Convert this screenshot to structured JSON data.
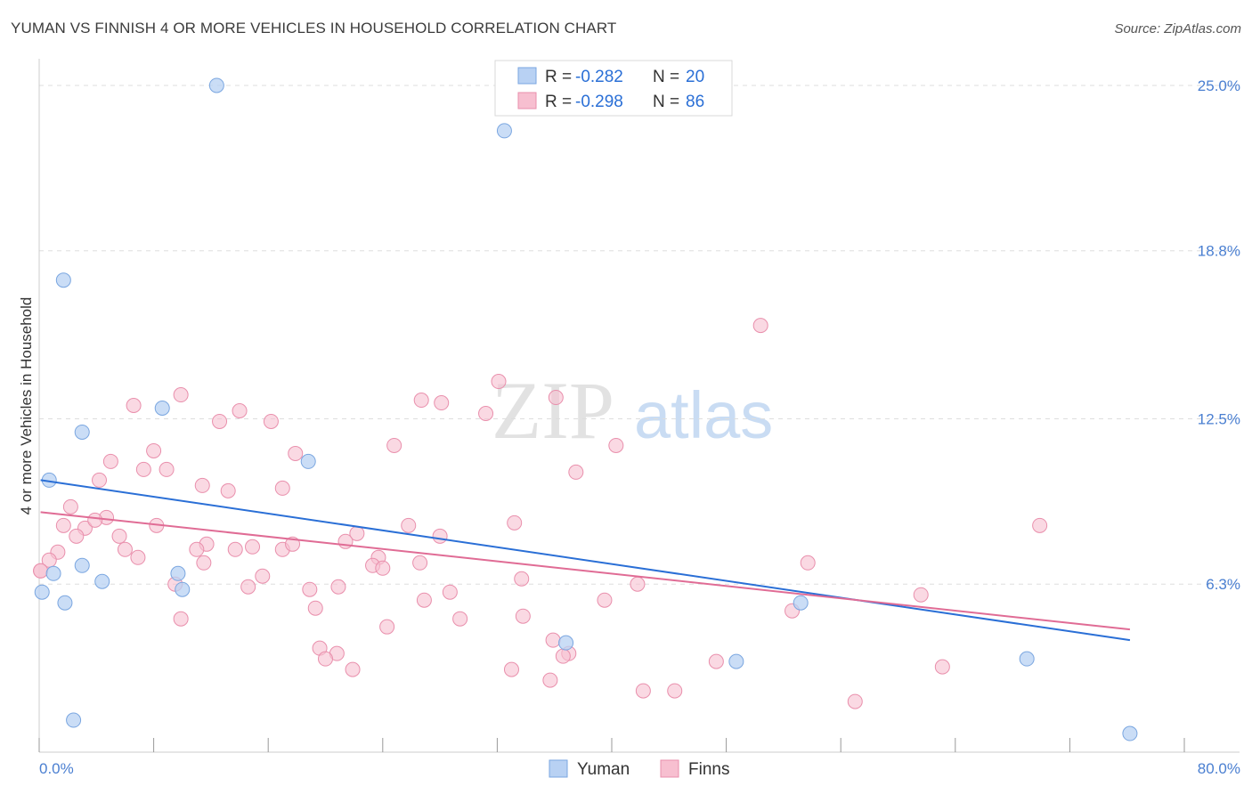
{
  "title": "YUMAN VS FINNISH 4 OR MORE VEHICLES IN HOUSEHOLD CORRELATION CHART",
  "source": "Source: ZipAtlas.com",
  "watermark": {
    "zip": "ZIP",
    "atlas": "atlas"
  },
  "colors": {
    "yuman_fill": "#b8d1f3",
    "yuman_stroke": "#7aa6e0",
    "yuman_line": "#2a6fd6",
    "finns_fill": "#f7bfd0",
    "finns_stroke": "#e98fac",
    "finns_line": "#e06c95",
    "axis_text": "#4a7fd1",
    "grid": "#dddddd"
  },
  "legend": {
    "rows": [
      {
        "r_label": "R =",
        "r_value": "-0.282",
        "n_label": "N =",
        "n_value": "20"
      },
      {
        "r_label": "R =",
        "r_value": "-0.298",
        "n_label": "N =",
        "n_value": "86"
      }
    ]
  },
  "bottom_legend": [
    "Yuman",
    "Finns"
  ],
  "chart_data": {
    "type": "scatter",
    "title": "YUMAN VS FINNISH 4 OR MORE VEHICLES IN HOUSEHOLD CORRELATION CHART",
    "xlabel": "",
    "ylabel": "4 or more Vehicles in Household",
    "xlim": [
      0,
      80
    ],
    "ylim": [
      0,
      25.6
    ],
    "x_tick_labels": [
      "0.0%",
      "80.0%"
    ],
    "y_ticks": [
      6.3,
      12.5,
      18.8,
      25.0
    ],
    "y_tick_labels": [
      "6.3%",
      "12.5%",
      "18.8%",
      "25.0%"
    ],
    "series": [
      {
        "name": "Yuman",
        "R": -0.282,
        "N": 20,
        "trend": {
          "x": [
            0.1,
            76.2
          ],
          "y": [
            10.2,
            4.2
          ]
        },
        "points": [
          [
            12.4,
            25.0
          ],
          [
            32.5,
            23.3
          ],
          [
            1.7,
            17.7
          ],
          [
            8.6,
            12.9
          ],
          [
            3.0,
            12.0
          ],
          [
            18.8,
            10.9
          ],
          [
            0.7,
            10.2
          ],
          [
            3.0,
            7.0
          ],
          [
            1.0,
            6.7
          ],
          [
            4.4,
            6.4
          ],
          [
            10.0,
            6.1
          ],
          [
            9.7,
            6.7
          ],
          [
            0.2,
            6.0
          ],
          [
            1.8,
            5.6
          ],
          [
            53.2,
            5.6
          ],
          [
            36.8,
            4.1
          ],
          [
            48.7,
            3.4
          ],
          [
            69.0,
            3.5
          ],
          [
            2.4,
            1.2
          ],
          [
            76.2,
            0.7
          ]
        ]
      },
      {
        "name": "Finns",
        "R": -0.298,
        "N": 86,
        "trend": {
          "x": [
            0.1,
            76.2
          ],
          "y": [
            9.0,
            4.6
          ]
        },
        "points": [
          [
            50.4,
            16.0
          ],
          [
            32.1,
            13.9
          ],
          [
            9.9,
            13.4
          ],
          [
            26.7,
            13.2
          ],
          [
            36.1,
            13.3
          ],
          [
            28.1,
            13.1
          ],
          [
            6.6,
            13.0
          ],
          [
            14.0,
            12.8
          ],
          [
            31.2,
            12.7
          ],
          [
            12.6,
            12.4
          ],
          [
            16.2,
            12.4
          ],
          [
            24.8,
            11.5
          ],
          [
            40.3,
            11.5
          ],
          [
            8.0,
            11.3
          ],
          [
            17.9,
            11.2
          ],
          [
            5.0,
            10.9
          ],
          [
            7.3,
            10.6
          ],
          [
            8.9,
            10.6
          ],
          [
            37.5,
            10.5
          ],
          [
            4.2,
            10.2
          ],
          [
            11.4,
            10.0
          ],
          [
            13.2,
            9.8
          ],
          [
            17.0,
            9.9
          ],
          [
            2.2,
            9.2
          ],
          [
            4.7,
            8.8
          ],
          [
            8.2,
            8.5
          ],
          [
            1.7,
            8.5
          ],
          [
            3.2,
            8.4
          ],
          [
            3.9,
            8.7
          ],
          [
            2.6,
            8.1
          ],
          [
            5.6,
            8.1
          ],
          [
            22.2,
            8.2
          ],
          [
            25.8,
            8.5
          ],
          [
            28.0,
            8.1
          ],
          [
            33.2,
            8.6
          ],
          [
            69.9,
            8.5
          ],
          [
            21.4,
            7.9
          ],
          [
            11.7,
            7.8
          ],
          [
            6.0,
            7.6
          ],
          [
            1.3,
            7.5
          ],
          [
            11.0,
            7.6
          ],
          [
            13.7,
            7.6
          ],
          [
            14.9,
            7.7
          ],
          [
            17.0,
            7.6
          ],
          [
            17.7,
            7.8
          ],
          [
            23.7,
            7.3
          ],
          [
            0.7,
            7.2
          ],
          [
            6.9,
            7.3
          ],
          [
            11.5,
            7.1
          ],
          [
            23.3,
            7.0
          ],
          [
            24.0,
            6.9
          ],
          [
            26.6,
            7.1
          ],
          [
            53.7,
            7.1
          ],
          [
            0.1,
            6.8
          ],
          [
            15.6,
            6.6
          ],
          [
            33.7,
            6.5
          ],
          [
            9.5,
            6.3
          ],
          [
            14.6,
            6.2
          ],
          [
            18.9,
            6.1
          ],
          [
            20.9,
            6.2
          ],
          [
            41.8,
            6.3
          ],
          [
            28.7,
            6.0
          ],
          [
            61.6,
            5.9
          ],
          [
            26.9,
            5.7
          ],
          [
            39.5,
            5.7
          ],
          [
            19.3,
            5.4
          ],
          [
            9.9,
            5.0
          ],
          [
            29.4,
            5.0
          ],
          [
            33.8,
            5.1
          ],
          [
            52.6,
            5.3
          ],
          [
            24.3,
            4.7
          ],
          [
            35.9,
            4.2
          ],
          [
            19.6,
            3.9
          ],
          [
            20.8,
            3.7
          ],
          [
            37.0,
            3.7
          ],
          [
            36.6,
            3.6
          ],
          [
            47.3,
            3.4
          ],
          [
            20.0,
            3.5
          ],
          [
            21.9,
            3.1
          ],
          [
            33.0,
            3.1
          ],
          [
            63.1,
            3.2
          ],
          [
            35.7,
            2.7
          ],
          [
            42.2,
            2.3
          ],
          [
            44.4,
            2.3
          ],
          [
            57.0,
            1.9
          ],
          [
            0.1,
            6.8
          ]
        ]
      }
    ]
  }
}
